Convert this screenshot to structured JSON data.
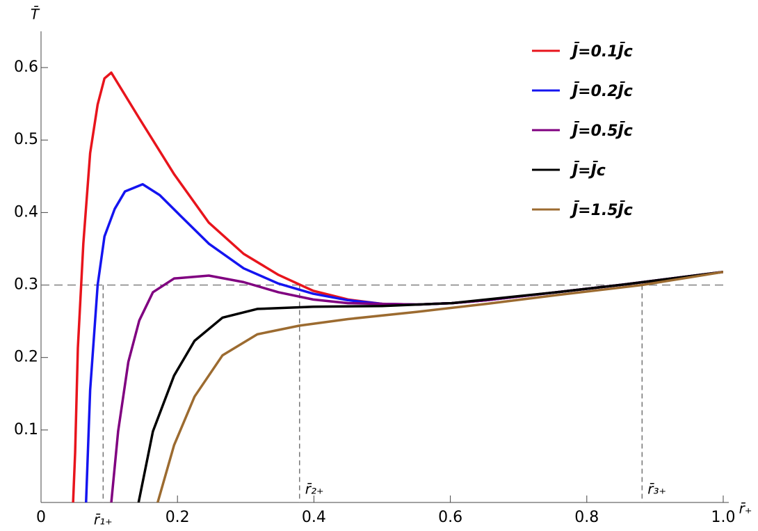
{
  "chart_data": {
    "type": "line",
    "y_label": "T̄",
    "x_label": "r̄₊",
    "xlim": [
      0,
      1
    ],
    "ylim": [
      0,
      0.65
    ],
    "xticks": [
      0,
      0.2,
      0.4,
      0.6,
      0.8,
      {
        "value": 1,
        "label": "1.0"
      }
    ],
    "yticks": [
      0.1,
      0.2,
      0.3,
      0.4,
      0.5,
      0.6
    ],
    "grid": false,
    "legend": "upper right",
    "hline": 0.3,
    "annotations": [
      {
        "x": 0.091,
        "label": "r̄₁₊"
      },
      {
        "x": 0.379,
        "label": "r̄₂₊"
      },
      {
        "x": 0.881,
        "label": "r̄₃₊"
      }
    ],
    "series": [
      {
        "name": "J̄=0.1J̄c",
        "color": "#e8141c",
        "x": [
          0.047,
          0.05,
          0.054,
          0.062,
          0.072,
          0.083,
          0.093,
          0.103,
          0.144,
          0.195,
          0.246,
          0.297,
          0.348,
          0.399,
          0.45,
          0.5,
          0.551,
          0.602,
          0.653,
          0.755,
          0.857,
          1.0
        ],
        "values": [
          0,
          0.069,
          0.213,
          0.357,
          0.482,
          0.549,
          0.585,
          0.593,
          0.53,
          0.453,
          0.386,
          0.343,
          0.314,
          0.292,
          0.28,
          0.274,
          0.273,
          0.275,
          0.279,
          0.29,
          0.301,
          0.318
        ]
      },
      {
        "name": "J̄=0.2J̄c",
        "color": "#1414f0",
        "x": [
          0.066,
          0.072,
          0.083,
          0.093,
          0.108,
          0.123,
          0.149,
          0.174,
          0.205,
          0.246,
          0.297,
          0.348,
          0.399,
          0.45,
          0.5,
          0.551,
          0.602,
          0.653,
          0.755,
          0.857,
          1.0
        ],
        "values": [
          0,
          0.155,
          0.3,
          0.367,
          0.405,
          0.429,
          0.439,
          0.424,
          0.395,
          0.357,
          0.323,
          0.302,
          0.288,
          0.279,
          0.274,
          0.273,
          0.275,
          0.279,
          0.29,
          0.301,
          0.318
        ]
      },
      {
        "name": "J̄=0.5J̄c",
        "color": "#800080",
        "x": [
          0.103,
          0.113,
          0.128,
          0.144,
          0.164,
          0.195,
          0.246,
          0.297,
          0.348,
          0.399,
          0.45,
          0.5,
          0.551,
          0.602,
          0.653,
          0.755,
          0.857,
          1.0
        ],
        "values": [
          0,
          0.098,
          0.194,
          0.251,
          0.29,
          0.309,
          0.313,
          0.304,
          0.29,
          0.28,
          0.275,
          0.274,
          0.273,
          0.275,
          0.279,
          0.29,
          0.301,
          0.318
        ]
      },
      {
        "name": "J̄=J̄c",
        "color": "#000000",
        "x": [
          0.143,
          0.164,
          0.195,
          0.225,
          0.266,
          0.317,
          0.399,
          0.5,
          0.602,
          0.653,
          0.755,
          0.857,
          1.0
        ],
        "values": [
          0,
          0.098,
          0.175,
          0.223,
          0.255,
          0.267,
          0.27,
          0.271,
          0.275,
          0.28,
          0.29,
          0.301,
          0.318
        ]
      },
      {
        "name": "J̄=1.5J̄c",
        "color": "#9c6b30",
        "x": [
          0.171,
          0.195,
          0.225,
          0.266,
          0.317,
          0.379,
          0.45,
          0.551,
          0.653,
          0.755,
          0.881,
          1.0
        ],
        "values": [
          0,
          0.079,
          0.146,
          0.203,
          0.232,
          0.244,
          0.253,
          0.263,
          0.274,
          0.286,
          0.3,
          0.318
        ]
      }
    ]
  }
}
